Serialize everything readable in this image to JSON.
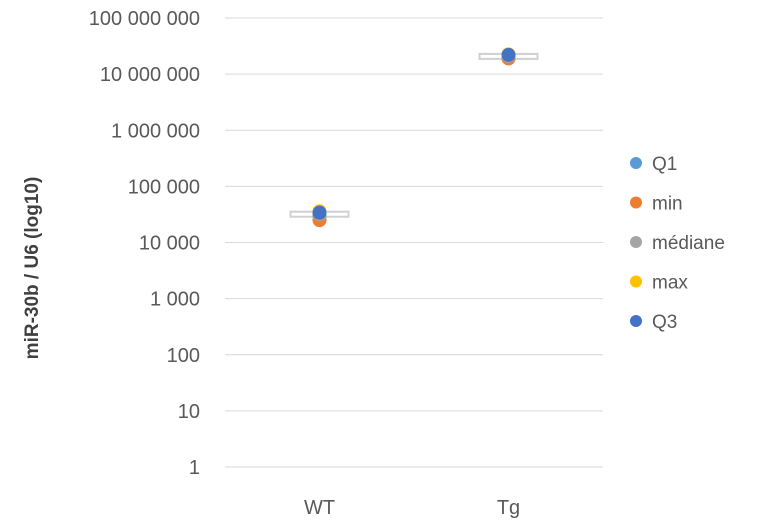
{
  "chart_data": {
    "type": "scatter",
    "title": "",
    "xlabel": "",
    "ylabel": "miR-30b / U6 (log10)",
    "y_scale": "log10",
    "ylim": [
      1,
      100000000
    ],
    "y_ticks": [
      1,
      10,
      100,
      1000,
      10000,
      100000,
      1000000,
      10000000,
      100000000
    ],
    "y_tick_labels": [
      "1",
      "10",
      "100",
      "1 000",
      "10 000",
      "100 000",
      "1 000 000",
      "10 000 000",
      "100 000 000"
    ],
    "categories": [
      "WT",
      "Tg"
    ],
    "grid": true,
    "legend_position": "right",
    "series": [
      {
        "name": "Q1",
        "color": "#5b9bd5",
        "values": [
          30000,
          20000000
        ]
      },
      {
        "name": "min",
        "color": "#ed7d31",
        "values": [
          25000,
          19000000
        ]
      },
      {
        "name": "médiane",
        "color": "#a5a5a5",
        "values": [
          32000,
          21000000
        ]
      },
      {
        "name": "max",
        "color": "#ffc000",
        "values": [
          36000,
          22500000
        ]
      },
      {
        "name": "Q3",
        "color": "#4472c4",
        "values": [
          34000,
          22000000
        ]
      }
    ]
  }
}
